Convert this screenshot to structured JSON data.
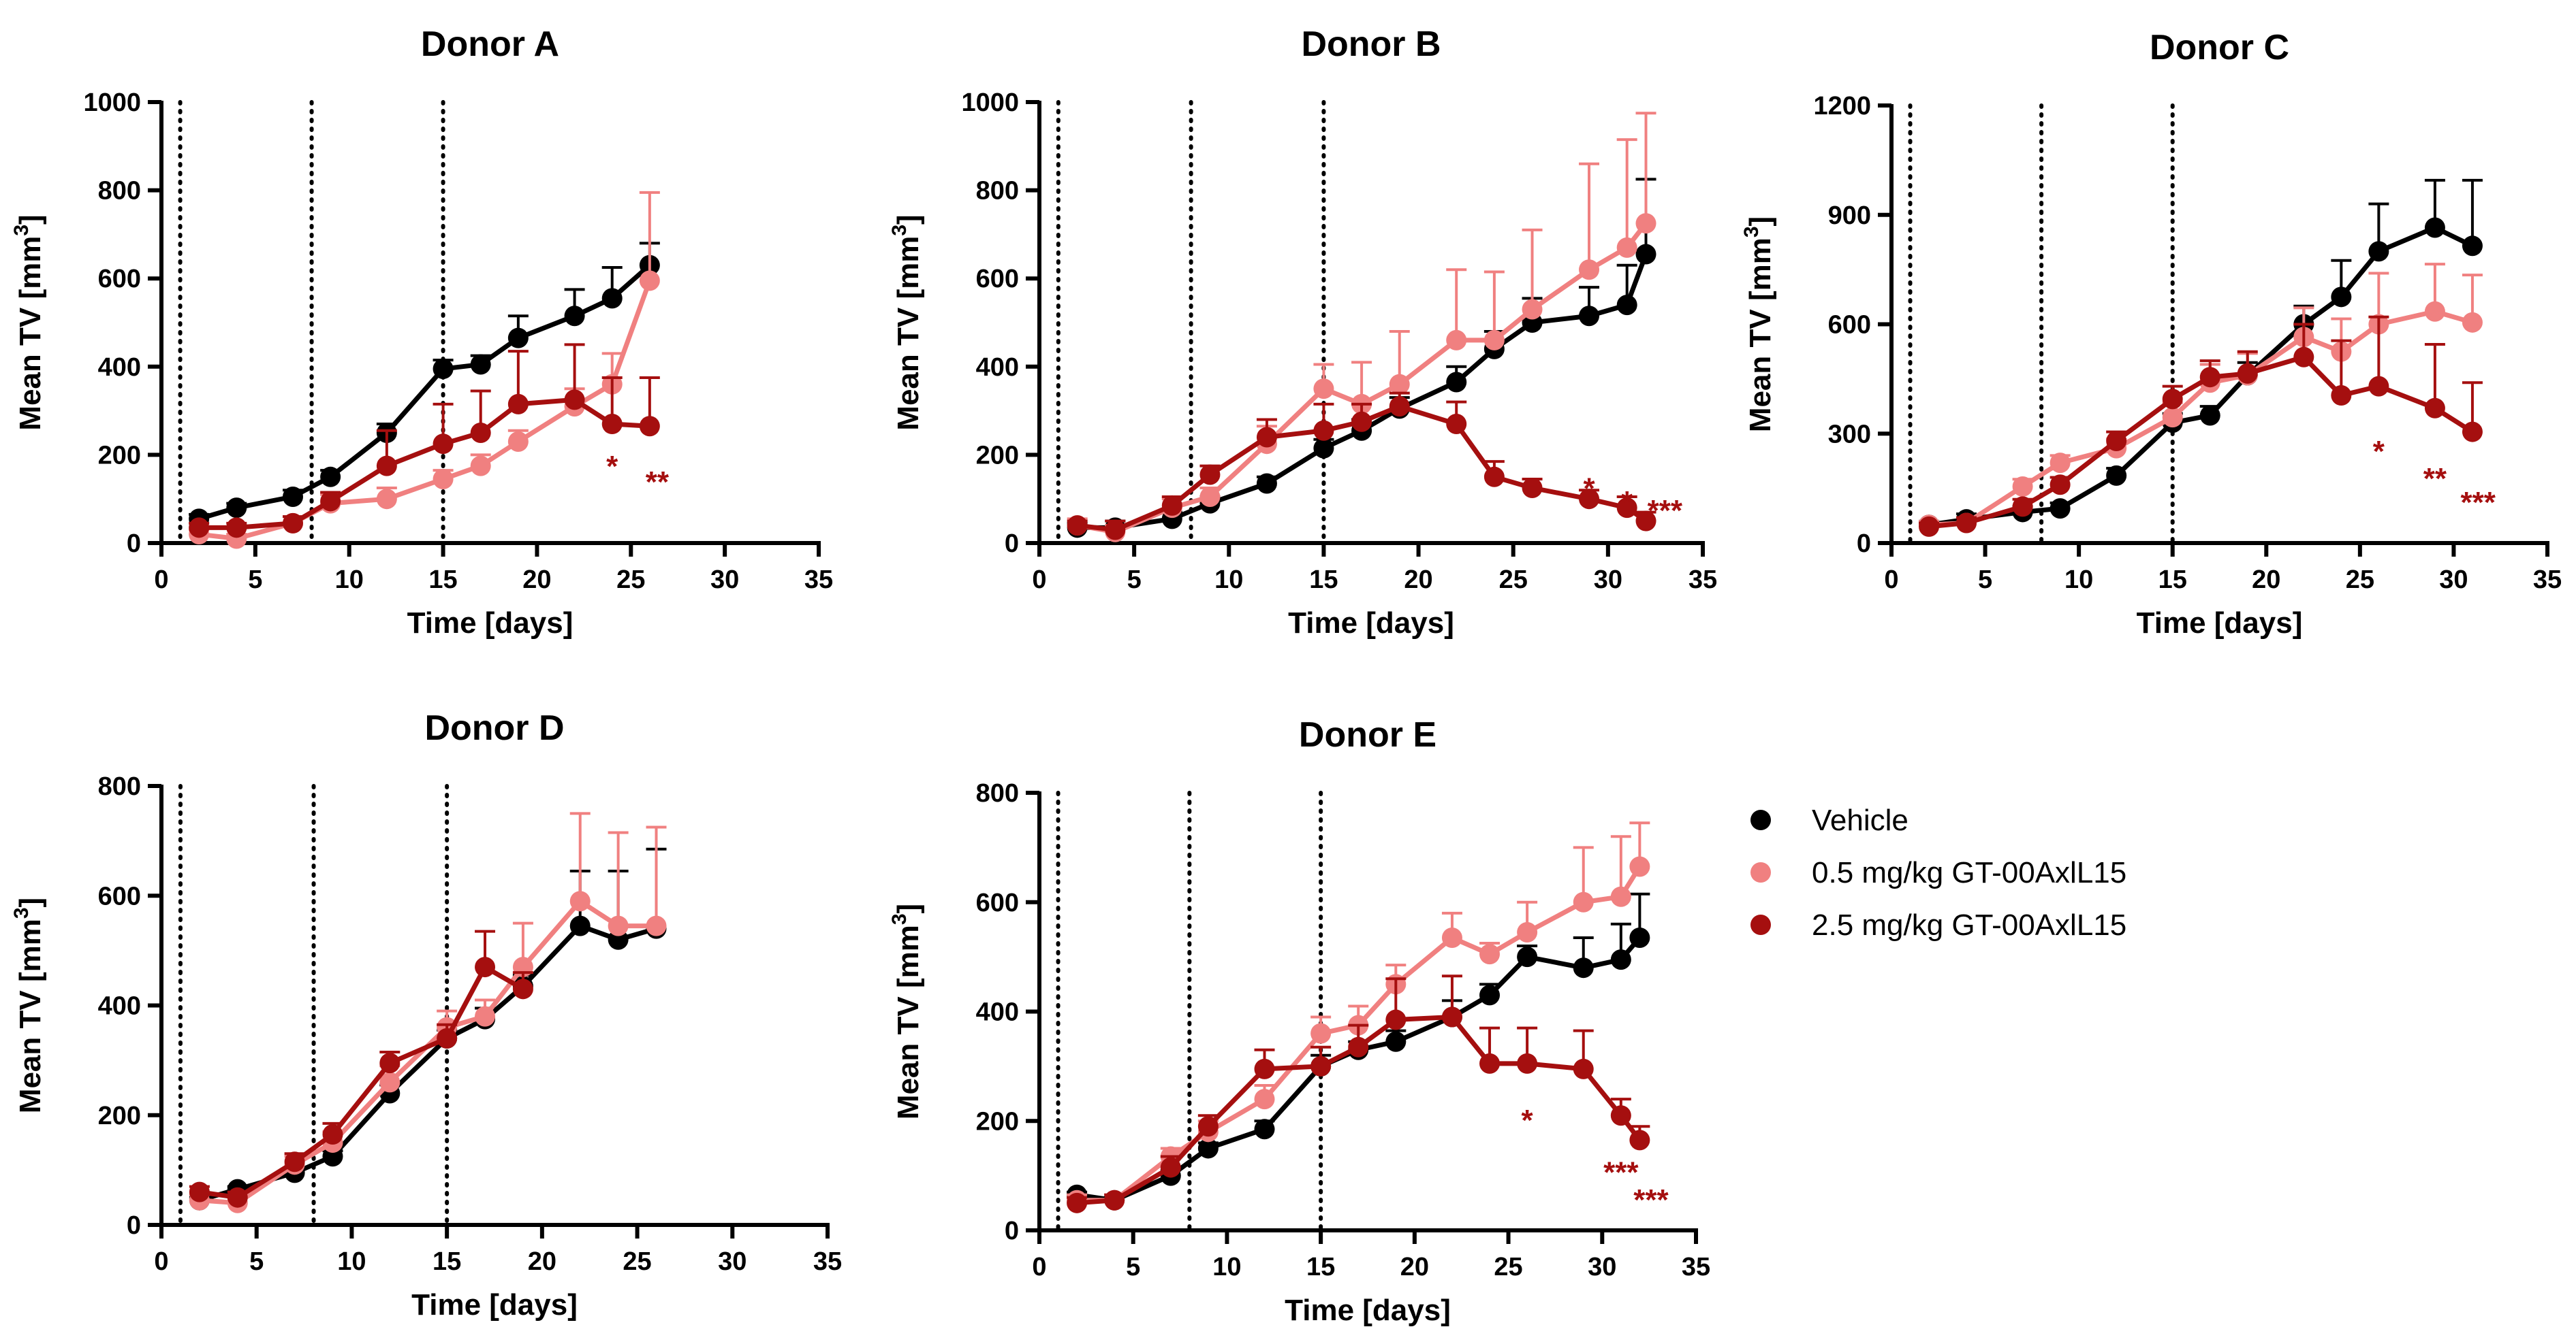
{
  "colors": {
    "vehicle": "#000000",
    "low_dose": "#f08080",
    "high_dose": "#a50f0f"
  },
  "legend": [
    {
      "key": "vehicle",
      "label": "Vehicle"
    },
    {
      "key": "low_dose",
      "label": "0.5 mg/kg GT-00AxlL15"
    },
    {
      "key": "high_dose",
      "label": "2.5 mg/kg GT-00AxlL15"
    }
  ],
  "chart_data": [
    {
      "type": "line",
      "title": "Donor A",
      "xlabel": "Time [days]",
      "ylabel": "Mean TV [mm",
      "ylabel_sup": "3",
      "ylabel_end": "]",
      "xlim": [
        0,
        35
      ],
      "ylim": [
        0,
        1000
      ],
      "xticks": [
        0,
        5,
        10,
        15,
        20,
        25,
        30,
        35
      ],
      "yticks": [
        0,
        200,
        400,
        600,
        800,
        1000
      ],
      "dosing_days": [
        1,
        8,
        15
      ],
      "series": [
        {
          "key": "vehicle",
          "name": "Vehicle",
          "x": [
            2,
            4,
            7,
            9,
            12,
            15,
            17,
            19,
            22,
            24,
            26
          ],
          "y": [
            55,
            80,
            105,
            150,
            250,
            395,
            405,
            465,
            515,
            555,
            630
          ],
          "err": [
            10,
            10,
            15,
            15,
            20,
            20,
            20,
            50,
            60,
            70,
            50
          ]
        },
        {
          "key": "low_dose",
          "name": "0.5 mg/kg GT-00AxlL15",
          "x": [
            2,
            4,
            7,
            9,
            12,
            15,
            17,
            19,
            22,
            24,
            26
          ],
          "y": [
            20,
            10,
            45,
            90,
            100,
            145,
            175,
            230,
            310,
            360,
            595
          ],
          "err": [
            10,
            10,
            15,
            20,
            25,
            20,
            25,
            25,
            40,
            70,
            200
          ]
        },
        {
          "key": "high_dose",
          "name": "2.5 mg/kg GT-00AxlL15",
          "x": [
            2,
            4,
            7,
            9,
            12,
            15,
            17,
            19,
            22,
            24,
            26
          ],
          "y": [
            35,
            35,
            45,
            95,
            175,
            225,
            250,
            315,
            325,
            270,
            265
          ],
          "err": [
            10,
            10,
            15,
            20,
            80,
            90,
            95,
            120,
            125,
            105,
            110
          ]
        }
      ],
      "annotations": [
        {
          "x": 24,
          "y": 185,
          "text": "*",
          "color": "high_dose"
        },
        {
          "x": 26.4,
          "y": 150,
          "text": "**",
          "color": "high_dose"
        }
      ]
    },
    {
      "type": "line",
      "title": "Donor B",
      "xlabel": "Time [days]",
      "ylabel": "Mean TV [mm",
      "ylabel_sup": "3",
      "ylabel_end": "]",
      "xlim": [
        0,
        35
      ],
      "ylim": [
        0,
        1000
      ],
      "xticks": [
        0,
        5,
        10,
        15,
        20,
        25,
        30,
        35
      ],
      "yticks": [
        0,
        200,
        400,
        600,
        800,
        1000
      ],
      "dosing_days": [
        1,
        8,
        15
      ],
      "series": [
        {
          "key": "vehicle",
          "name": "Vehicle",
          "x": [
            2,
            4,
            7,
            9,
            12,
            15,
            17,
            19,
            22,
            24,
            26,
            29,
            31,
            32
          ],
          "y": [
            35,
            35,
            55,
            90,
            135,
            215,
            255,
            305,
            365,
            440,
            500,
            515,
            540,
            655
          ],
          "err": [
            10,
            15,
            15,
            15,
            15,
            20,
            25,
            25,
            35,
            40,
            55,
            65,
            90,
            170
          ]
        },
        {
          "key": "low_dose",
          "name": "0.5 mg/kg GT-00AxlL15",
          "x": [
            2,
            4,
            7,
            9,
            12,
            15,
            17,
            19,
            22,
            24,
            26,
            29,
            31,
            32
          ],
          "y": [
            40,
            25,
            80,
            105,
            225,
            350,
            315,
            360,
            460,
            460,
            530,
            620,
            670,
            725
          ],
          "err": [
            15,
            15,
            20,
            20,
            40,
            55,
            95,
            120,
            160,
            155,
            180,
            240,
            245,
            250
          ]
        },
        {
          "key": "high_dose",
          "name": "2.5 mg/kg GT-00AxlL15",
          "x": [
            2,
            4,
            7,
            9,
            12,
            15,
            17,
            19,
            22,
            24,
            26,
            29,
            31,
            32
          ],
          "y": [
            40,
            30,
            85,
            155,
            240,
            255,
            275,
            310,
            270,
            150,
            125,
            100,
            80,
            50
          ],
          "err": [
            10,
            20,
            20,
            20,
            40,
            60,
            40,
            30,
            50,
            35,
            20,
            20,
            25,
            20
          ]
        }
      ],
      "annotations": [
        {
          "x": 29,
          "y": 135,
          "text": "*",
          "color": "high_dose"
        },
        {
          "x": 31,
          "y": 105,
          "text": "*",
          "color": "high_dose"
        },
        {
          "x": 33,
          "y": 85,
          "text": "***",
          "color": "high_dose"
        }
      ]
    },
    {
      "type": "line",
      "title": "Donor C",
      "xlabel": "Time [days]",
      "ylabel": "Mean TV [mm",
      "ylabel_sup": "3",
      "ylabel_end": "]",
      "xlim": [
        0,
        35
      ],
      "ylim": [
        0,
        1200
      ],
      "xticks": [
        0,
        5,
        10,
        15,
        20,
        25,
        30,
        35
      ],
      "yticks": [
        0,
        300,
        600,
        900,
        1200
      ],
      "dosing_days": [
        1,
        8,
        15
      ],
      "series": [
        {
          "key": "vehicle",
          "name": "Vehicle",
          "x": [
            2,
            4,
            7,
            9,
            12,
            15,
            17,
            19,
            22,
            24,
            26,
            29,
            31
          ],
          "y": [
            50,
            65,
            85,
            95,
            185,
            330,
            350,
            460,
            600,
            675,
            800,
            865,
            815
          ],
          "err": [
            10,
            15,
            15,
            15,
            20,
            25,
            25,
            35,
            50,
            100,
            130,
            130,
            180
          ]
        },
        {
          "key": "low_dose",
          "name": "0.5 mg/kg GT-00AxlL15",
          "x": [
            2,
            4,
            7,
            9,
            12,
            15,
            17,
            19,
            22,
            24,
            26,
            29,
            31
          ],
          "y": [
            50,
            55,
            155,
            220,
            260,
            345,
            440,
            460,
            565,
            525,
            600,
            635,
            605
          ],
          "err": [
            10,
            15,
            20,
            20,
            25,
            40,
            50,
            60,
            80,
            90,
            140,
            130,
            130
          ]
        },
        {
          "key": "high_dose",
          "name": "2.5 mg/kg GT-00AxlL15",
          "x": [
            2,
            4,
            7,
            9,
            12,
            15,
            17,
            19,
            22,
            24,
            26,
            29,
            31
          ],
          "y": [
            45,
            55,
            100,
            160,
            280,
            395,
            455,
            465,
            510,
            405,
            430,
            370,
            305
          ],
          "err": [
            10,
            15,
            20,
            20,
            25,
            35,
            45,
            60,
            90,
            150,
            190,
            175,
            135
          ]
        }
      ],
      "annotations": [
        {
          "x": 26,
          "y": 265,
          "text": "*",
          "color": "high_dose"
        },
        {
          "x": 29,
          "y": 190,
          "text": "**",
          "color": "high_dose"
        },
        {
          "x": 31.3,
          "y": 125,
          "text": "***",
          "color": "high_dose"
        }
      ]
    },
    {
      "type": "line",
      "title": "Donor D",
      "xlabel": "Time [days]",
      "ylabel": "Mean TV [mm",
      "ylabel_sup": "3",
      "ylabel_end": "]",
      "xlim": [
        0,
        35
      ],
      "ylim": [
        0,
        800
      ],
      "xticks": [
        0,
        5,
        10,
        15,
        20,
        25,
        30,
        35
      ],
      "yticks": [
        0,
        200,
        400,
        600,
        800
      ],
      "dosing_days": [
        1,
        8,
        15
      ],
      "series": [
        {
          "key": "vehicle",
          "name": "Vehicle",
          "x": [
            2,
            4,
            7,
            9,
            12,
            15,
            17,
            19,
            22,
            24,
            26
          ],
          "y": [
            45,
            65,
            95,
            125,
            240,
            340,
            375,
            435,
            545,
            520,
            540
          ],
          "err": [
            5,
            5,
            10,
            10,
            15,
            15,
            20,
            20,
            100,
            125,
            145
          ]
        },
        {
          "key": "low_dose",
          "name": "0.5 mg/kg GT-00AxlL15",
          "x": [
            2,
            4,
            7,
            9,
            12,
            15,
            17,
            19,
            22,
            24,
            26
          ],
          "y": [
            45,
            40,
            110,
            150,
            260,
            360,
            380,
            470,
            590,
            545,
            545
          ],
          "err": [
            10,
            10,
            15,
            20,
            30,
            30,
            30,
            80,
            160,
            170,
            180
          ]
        },
        {
          "key": "high_dose",
          "name": "2.5 mg/kg GT-00AxlL15",
          "x": [
            2,
            4,
            7,
            9,
            12,
            15,
            17,
            19
          ],
          "y": [
            60,
            50,
            115,
            165,
            295,
            340,
            470,
            430
          ],
          "err": [
            10,
            10,
            15,
            20,
            20,
            25,
            65,
            30
          ]
        }
      ],
      "annotations": []
    },
    {
      "type": "line",
      "title": "Donor E",
      "xlabel": "Time [days]",
      "ylabel": "Mean TV [mm",
      "ylabel_sup": "3",
      "ylabel_end": "]",
      "xlim": [
        0,
        35
      ],
      "ylim": [
        0,
        800
      ],
      "xticks": [
        0,
        5,
        10,
        15,
        20,
        25,
        30,
        35
      ],
      "yticks": [
        0,
        200,
        400,
        600,
        800
      ],
      "dosing_days": [
        1,
        8,
        15
      ],
      "series": [
        {
          "key": "vehicle",
          "name": "Vehicle",
          "x": [
            2,
            4,
            7,
            9,
            12,
            15,
            17,
            19,
            22,
            24,
            26,
            29,
            31,
            32
          ],
          "y": [
            65,
            55,
            100,
            150,
            185,
            300,
            330,
            345,
            390,
            430,
            500,
            480,
            495,
            535
          ],
          "err": [
            5,
            5,
            10,
            10,
            15,
            20,
            15,
            20,
            30,
            20,
            20,
            55,
            65,
            80
          ]
        },
        {
          "key": "low_dose",
          "name": "0.5 mg/kg GT-00AxlL15",
          "x": [
            2,
            4,
            7,
            9,
            12,
            15,
            17,
            19,
            22,
            24,
            26,
            29,
            31,
            32
          ],
          "y": [
            55,
            55,
            135,
            180,
            240,
            360,
            375,
            450,
            535,
            505,
            545,
            600,
            610,
            665
          ],
          "err": [
            10,
            10,
            15,
            20,
            25,
            30,
            35,
            35,
            45,
            20,
            55,
            100,
            110,
            80
          ]
        },
        {
          "key": "high_dose",
          "name": "2.5 mg/kg GT-00AxlL15",
          "x": [
            2,
            4,
            7,
            9,
            12,
            15,
            17,
            19,
            22,
            24,
            26,
            29,
            31,
            32
          ],
          "y": [
            50,
            55,
            115,
            190,
            295,
            300,
            335,
            385,
            390,
            305,
            305,
            295,
            210,
            165
          ],
          "err": [
            10,
            10,
            20,
            20,
            35,
            35,
            40,
            75,
            75,
            65,
            65,
            70,
            30,
            25
          ]
        }
      ],
      "annotations": [
        {
          "x": 26,
          "y": 210,
          "text": "*",
          "color": "high_dose"
        },
        {
          "x": 31,
          "y": 115,
          "text": "***",
          "color": "high_dose"
        },
        {
          "x": 32.6,
          "y": 65,
          "text": "***",
          "color": "high_dose"
        }
      ]
    }
  ]
}
